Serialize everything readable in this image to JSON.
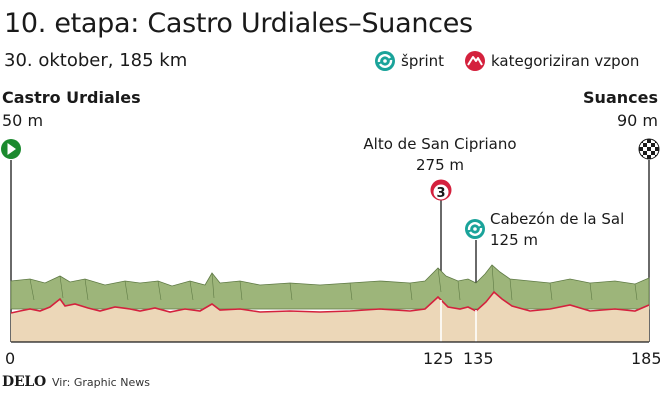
{
  "title": "10. etapa: Castro Urdiales–Suances",
  "subtitle": "30. oktober, 185 km",
  "legend": {
    "sprint_label": "šprint",
    "climb_label": "kategoriziran vzpon",
    "sprint_icon": "sprint-icon",
    "climb_icon": "mountain-climb-icon"
  },
  "start": {
    "name": "Castro Urdiales",
    "altitude": "50 m",
    "icon": "start-arrow-icon"
  },
  "finish": {
    "name": "Suances",
    "altitude": "90 m",
    "icon": "checkered-flag-icon"
  },
  "climb": {
    "name": "Alto de San Cipriano",
    "altitude": "275 m",
    "category": "3",
    "km": 125
  },
  "sprint": {
    "name": "Cabezón de la Sal",
    "altitude": "125 m",
    "km": 135
  },
  "axis": {
    "ticks": [
      "0",
      "125",
      "135",
      "185"
    ]
  },
  "footer": {
    "logo": "DELO",
    "source": "Vir: Graphic News"
  },
  "colors": {
    "start_green": "#1b8a2e",
    "sprint_teal": "#1aa39a",
    "climb_red": "#d4213d",
    "profile_fill": "#ecd7b8",
    "profile_top": "#8aa566",
    "profile_line": "#d4213d"
  }
}
